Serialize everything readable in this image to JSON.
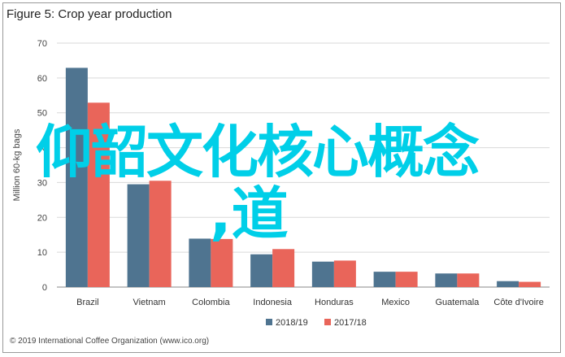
{
  "chart_data": {
    "type": "bar",
    "title": "Figure 5: Crop year production",
    "ylabel": "Million 60-kg bags",
    "xlabel": "",
    "ylim": [
      0,
      70
    ],
    "yticks": [
      0,
      10,
      20,
      30,
      40,
      50,
      60,
      70
    ],
    "grid": true,
    "legend_position": "bottom",
    "categories": [
      "Brazil",
      "Vietnam",
      "Colombia",
      "Indonesia",
      "Honduras",
      "Mexico",
      "Guatemala",
      "Côte d'Ivoire"
    ],
    "series": [
      {
        "name": "2018/19",
        "color": "#4f7490",
        "values": [
          62.9,
          29.5,
          13.9,
          9.4,
          7.3,
          4.4,
          3.9,
          1.7
        ]
      },
      {
        "name": "2017/18",
        "color": "#e9655a",
        "values": [
          52.9,
          30.5,
          13.8,
          10.9,
          7.6,
          4.4,
          3.9,
          1.5
        ]
      }
    ],
    "credit": "© 2019 International Coffee Organization (www.ico.org)"
  },
  "overlay": {
    "line1": "仰韶文化核心概念",
    "line2": ",道"
  }
}
